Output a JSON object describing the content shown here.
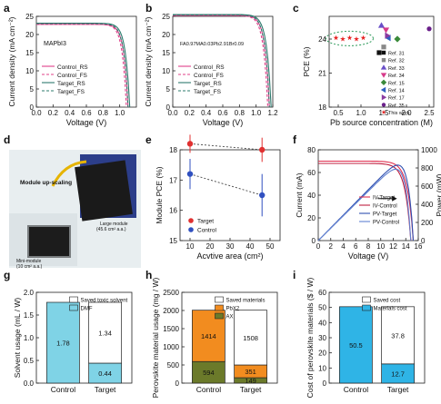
{
  "chart_data": [
    {
      "panel": "a",
      "type": "line",
      "annotation": "MAPbI3",
      "xlabel": "Voltage (V)",
      "ylabel": "Current density (mA cm⁻²)",
      "xlim": [
        0,
        1.2
      ],
      "ylim": [
        0,
        25
      ],
      "xticks": [
        "0.0",
        "0.2",
        "0.4",
        "0.6",
        "0.8",
        "1.0"
      ],
      "yticks": [
        "0",
        "5",
        "10",
        "15",
        "20",
        "25"
      ],
      "series": [
        {
          "name": "Control_RS",
          "color": "#e0408a",
          "dash": "",
          "jsc": 22.8,
          "voc": 1.1
        },
        {
          "name": "Control_FS",
          "color": "#e0408a",
          "dash": "3,2",
          "jsc": 22.8,
          "voc": 1.08
        },
        {
          "name": "Target_RS",
          "color": "#2d7b6e",
          "dash": "",
          "jsc": 23.1,
          "voc": 1.12
        },
        {
          "name": "Target_FS",
          "color": "#2d7b6e",
          "dash": "3,2",
          "jsc": 23.0,
          "voc": 1.1
        }
      ]
    },
    {
      "panel": "b",
      "type": "line",
      "annotation": "FA0.97MA0.03Pb2.91Br0.09",
      "xlabel": "Voltage (V)",
      "ylabel": "Current density (mA cm⁻²)",
      "xlim": [
        0,
        1.2
      ],
      "ylim": [
        0,
        25
      ],
      "xticks": [
        "0.0",
        "0.2",
        "0.4",
        "0.6",
        "0.8",
        "1.0",
        "1.2"
      ],
      "yticks": [
        "0",
        "5",
        "10",
        "15",
        "20",
        "25"
      ],
      "series": [
        {
          "name": "Control_RS",
          "color": "#e0408a",
          "dash": "",
          "jsc": 25.3,
          "voc": 1.16
        },
        {
          "name": "Control_FS",
          "color": "#e0408a",
          "dash": "3,2",
          "jsc": 25.2,
          "voc": 1.14
        },
        {
          "name": "Target_RS",
          "color": "#2d7b6e",
          "dash": "",
          "jsc": 25.5,
          "voc": 1.18
        },
        {
          "name": "Target_FS",
          "color": "#2d7b6e",
          "dash": "3,2",
          "jsc": 25.4,
          "voc": 1.16
        }
      ]
    },
    {
      "panel": "c",
      "type": "scatter",
      "xlabel": "Pb source concentration (M)",
      "ylabel": "PCE (%)",
      "xlim": [
        0.3,
        2.6
      ],
      "ylim": [
        18,
        26
      ],
      "xticks": [
        "0.5",
        "1.0",
        "1.5",
        "2.0",
        "2.5"
      ],
      "yticks": [
        "18",
        "21",
        "24"
      ],
      "points": [
        {
          "name": "Ref. 31",
          "x": 1.4,
          "y": 22.8,
          "color": "#111111",
          "shape": "square"
        },
        {
          "name": "Ref. 32",
          "x": 1.5,
          "y": 23.3,
          "color": "#888888",
          "shape": "square"
        },
        {
          "name": "Ref. 33",
          "x": 1.45,
          "y": 25.2,
          "color": "#6a4fc8",
          "shape": "triangle-up"
        },
        {
          "name": "Ref. 34",
          "x": 1.55,
          "y": 24.8,
          "color": "#d63a8a",
          "shape": "triangle-down"
        },
        {
          "name": "Ref. 15",
          "x": 1.8,
          "y": 24.0,
          "color": "#3a8a3a",
          "shape": "diamond"
        },
        {
          "name": "Ref. 14",
          "x": 1.6,
          "y": 24.1,
          "color": "#3060c0",
          "shape": "triangle-left"
        },
        {
          "name": "Ref. 17",
          "x": 1.58,
          "y": 24.3,
          "color": "#8a3aa0",
          "shape": "triangle-right"
        },
        {
          "name": "Ref. 35",
          "x": 2.5,
          "y": 24.9,
          "color": "#6a1f8a",
          "shape": "circle"
        },
        {
          "name": "This work",
          "x": 0.45,
          "y": 24.1,
          "color": "#e62020",
          "shape": "star"
        },
        {
          "name": "This work",
          "x": 0.6,
          "y": 24.0,
          "color": "#e62020",
          "shape": "star"
        },
        {
          "name": "This work",
          "x": 0.75,
          "y": 24.1,
          "color": "#e62020",
          "shape": "star"
        },
        {
          "name": "This work",
          "x": 0.9,
          "y": 24.0,
          "color": "#e62020",
          "shape": "star"
        },
        {
          "name": "This work",
          "x": 1.05,
          "y": 24.1,
          "color": "#e62020",
          "shape": "star"
        }
      ]
    },
    {
      "panel": "e",
      "type": "scatter",
      "xlabel": "Acvtive area (cm²)",
      "ylabel": "Module PCE (%)",
      "xlim": [
        5,
        55
      ],
      "ylim": [
        15,
        18
      ],
      "xticks": [
        "10",
        "20",
        "30",
        "40",
        "50"
      ],
      "yticks": [
        "15",
        "16",
        "17",
        "18"
      ],
      "series": [
        {
          "name": "Target",
          "color": "#e03030",
          "x": [
            10,
            46
          ],
          "y": [
            18.2,
            18.0
          ],
          "err": [
            0.3,
            0.4
          ]
        },
        {
          "name": "Control",
          "color": "#3050c0",
          "x": [
            10,
            46
          ],
          "y": [
            17.2,
            16.5
          ],
          "err": [
            0.5,
            0.7
          ]
        }
      ]
    },
    {
      "panel": "f",
      "type": "line",
      "xlabel": "Voltage (V)",
      "ylabel": "Current (mA)",
      "ylabel_right": "Power (mW)",
      "xlim": [
        0,
        16
      ],
      "ylim": [
        0,
        80
      ],
      "ylim_right": [
        0,
        1000
      ],
      "xticks": [
        "0",
        "2",
        "4",
        "6",
        "8",
        "10",
        "12",
        "14",
        "16"
      ],
      "yticks": [
        "0",
        "20",
        "40",
        "60",
        "80"
      ],
      "yticks_right": [
        "0",
        "200",
        "400",
        "600",
        "800",
        "1000"
      ],
      "series": [
        {
          "name": "IV-Target",
          "color": "#e03050",
          "jsc": 70,
          "voc": 15.2,
          "kind": "iv"
        },
        {
          "name": "IV-Control",
          "color": "#c02040",
          "jsc": 68,
          "voc": 14.8,
          "kind": "iv"
        },
        {
          "name": "PV-Target",
          "color": "#3050b0",
          "jsc": 70,
          "voc": 15.2,
          "kind": "pv"
        },
        {
          "name": "PV-Control",
          "color": "#6080d0",
          "jsc": 68,
          "voc": 14.8,
          "kind": "pv"
        }
      ]
    },
    {
      "panel": "g",
      "type": "bar",
      "ylabel": "Solvent usage (mL / W)",
      "categories": [
        "Control",
        "Target"
      ],
      "ylim": [
        0,
        2.0
      ],
      "yticks": [
        "0.0",
        "0.5",
        "1.0",
        "1.5",
        "2.0"
      ],
      "series": [
        {
          "name": "DMF",
          "color": "#7fd3e6",
          "values": [
            1.78,
            0.44
          ]
        },
        {
          "name": "Saved toxic solvent",
          "color": "#ffffff",
          "values": [
            0,
            1.34
          ]
        }
      ],
      "labels": [
        [
          "1.78",
          ""
        ],
        [
          "0.44",
          "1.34"
        ]
      ]
    },
    {
      "panel": "h",
      "type": "bar",
      "ylabel": "Perovskite material usage (mg / W)",
      "categories": [
        "Control",
        "Target"
      ],
      "ylim": [
        0,
        2500
      ],
      "yticks": [
        "0",
        "500",
        "1000",
        "1500",
        "2000",
        "2500"
      ],
      "series": [
        {
          "name": "AX",
          "color": "#6b7a2a",
          "values": [
            594,
            149
          ]
        },
        {
          "name": "PbX2",
          "color": "#f28c1f",
          "values": [
            1414,
            351
          ]
        },
        {
          "name": "Saved materials",
          "color": "#ffffff",
          "values": [
            0,
            1508
          ]
        }
      ],
      "labels": [
        [
          "594",
          "1414",
          ""
        ],
        [
          "149",
          "351",
          "1508"
        ]
      ]
    },
    {
      "panel": "i",
      "type": "bar",
      "ylabel": "Cost of perovskite materials ($ / W)",
      "categories": [
        "Control",
        "Target"
      ],
      "ylim": [
        0,
        60
      ],
      "yticks": [
        "0",
        "10",
        "20",
        "30",
        "40",
        "50",
        "60"
      ],
      "series": [
        {
          "name": "Materials cost",
          "color": "#2fb4e6",
          "values": [
            50.5,
            12.7
          ]
        },
        {
          "name": "Saved cost",
          "color": "#ffffff",
          "values": [
            0,
            37.8
          ]
        }
      ],
      "labels": [
        [
          "50.5",
          ""
        ],
        [
          "12.7",
          "37.8"
        ]
      ]
    }
  ],
  "photo": {
    "top_label": "Module up-scaling",
    "small_label": "Mini-module",
    "small_area": "(10 cm² a.a.)",
    "large_label": "Large module",
    "large_area": "(45.6 cm² a.a.)"
  },
  "panel_letters": [
    "a",
    "b",
    "c",
    "d",
    "e",
    "f",
    "g",
    "h",
    "i"
  ]
}
